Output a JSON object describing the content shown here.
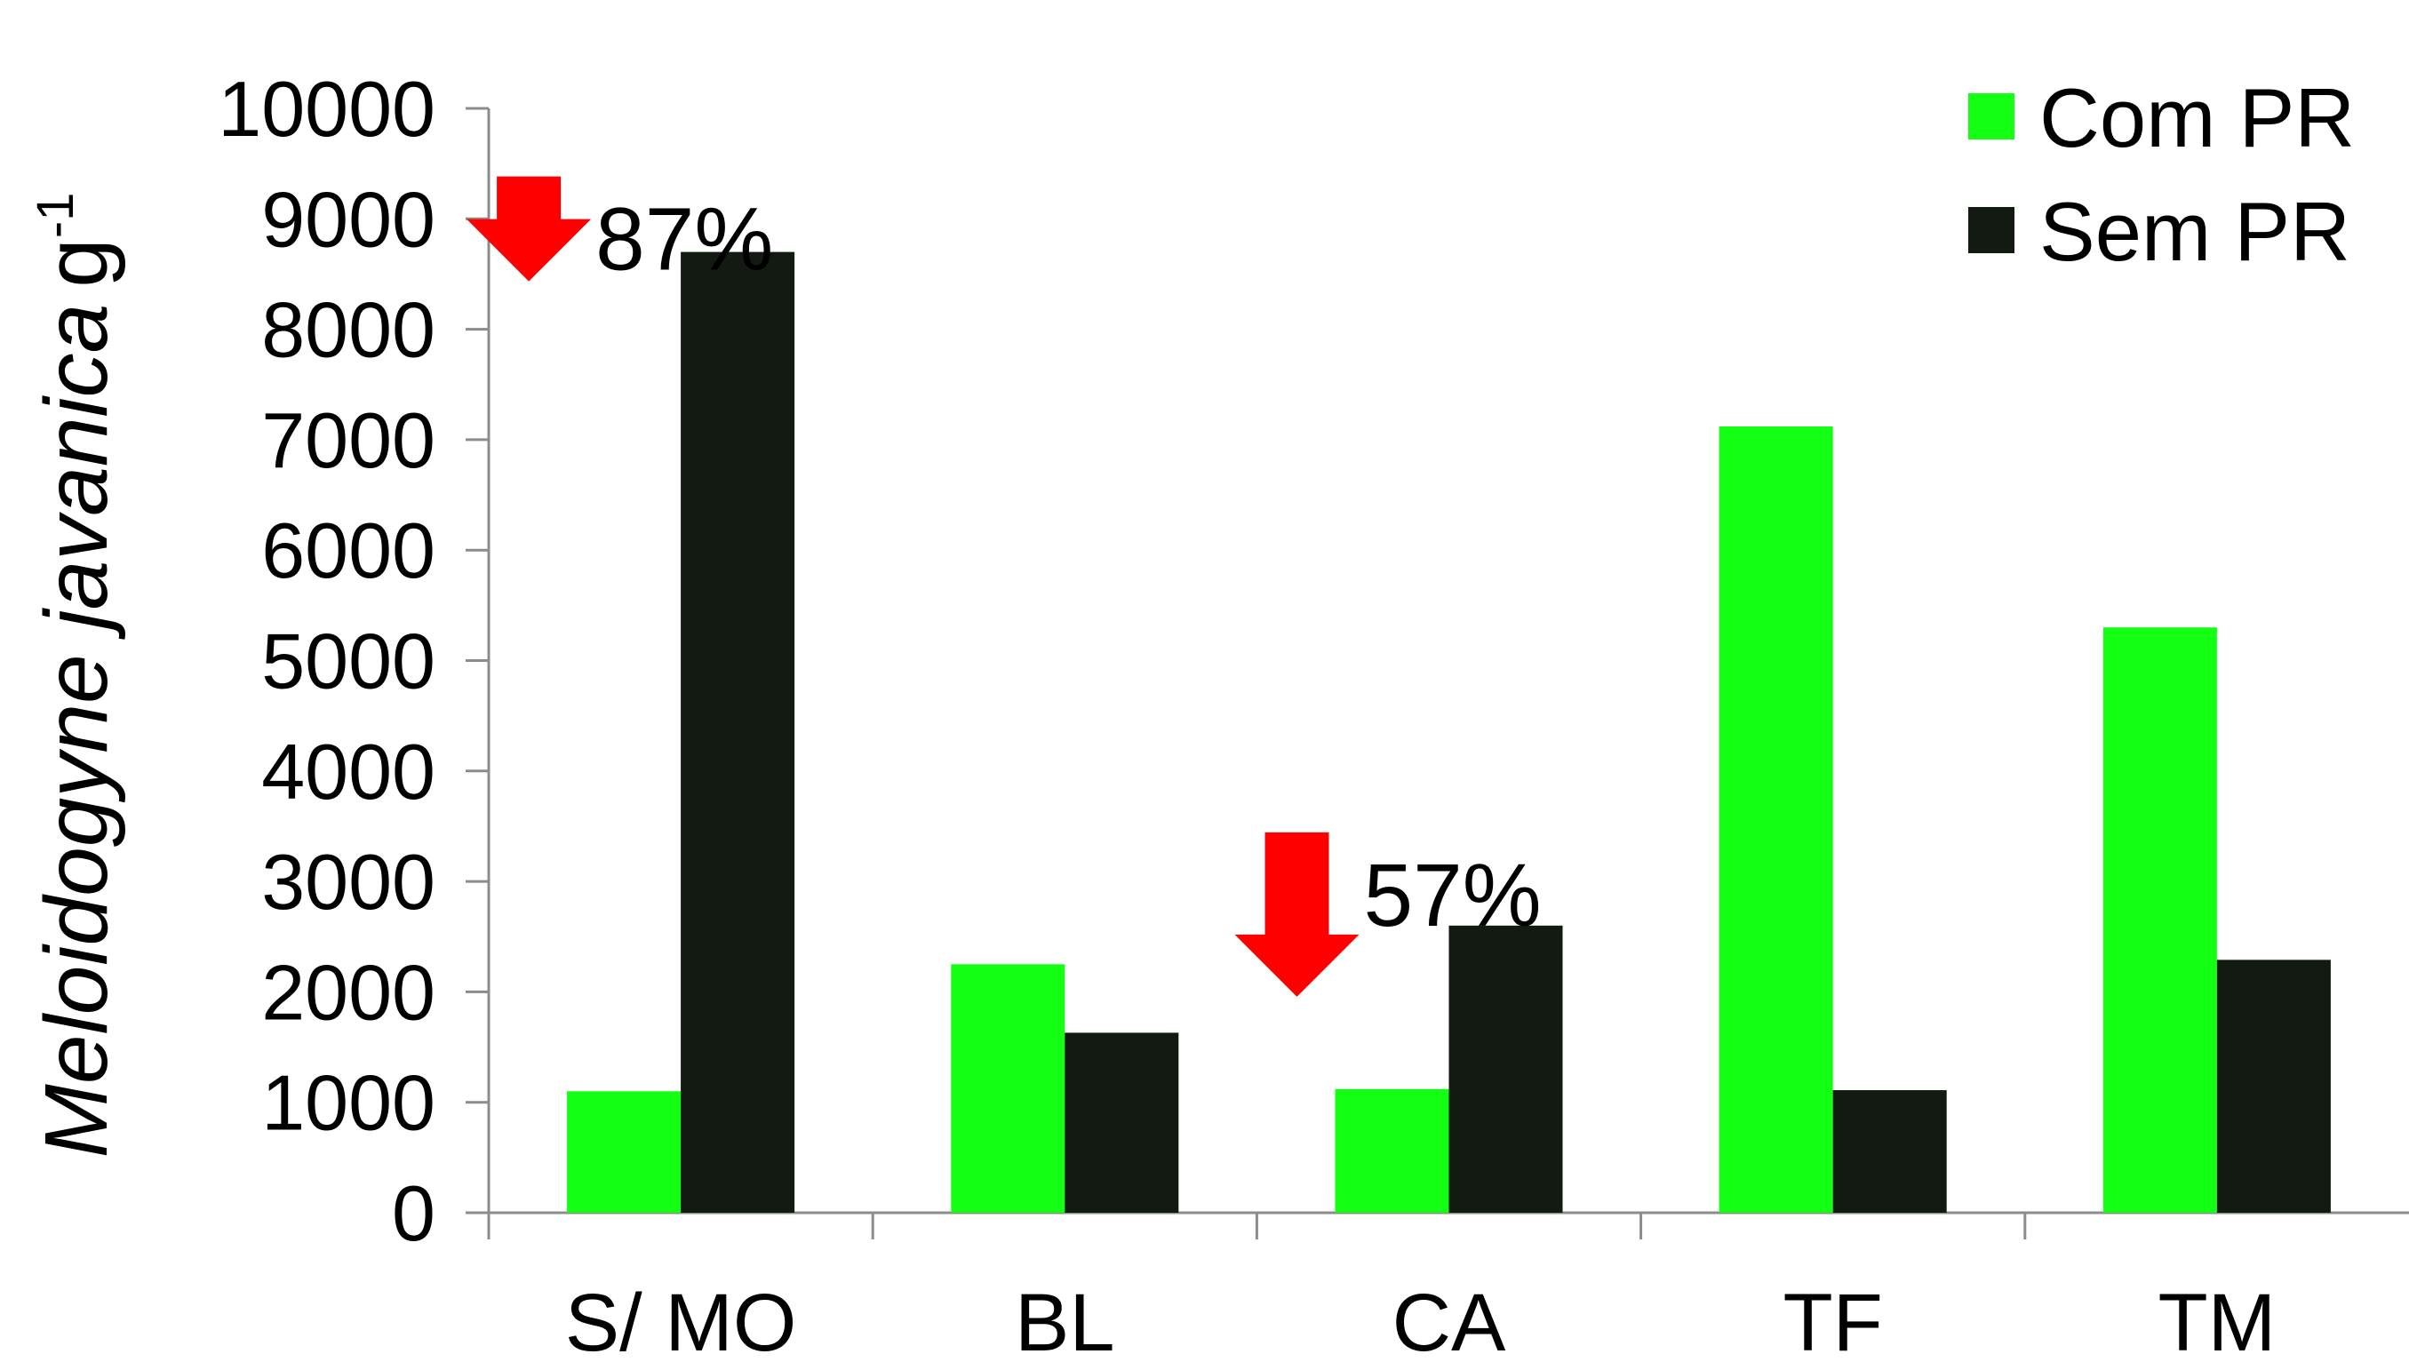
{
  "chart_data": {
    "type": "bar",
    "categories": [
      "S/ MO",
      "BL",
      "CA",
      "TF",
      "TM"
    ],
    "series": [
      {
        "name": "Com PR",
        "color": "#13ff13",
        "values": [
          1100,
          2250,
          1120,
          7120,
          5300
        ]
      },
      {
        "name": "Sem PR",
        "color": "#121a12",
        "values": [
          8700,
          1630,
          2600,
          1110,
          2290
        ]
      }
    ],
    "ylabel": {
      "main": "Meloidogyne javanica",
      "unit": "g",
      "superscript": "-1"
    },
    "ylim": [
      0,
      10000
    ],
    "yticks": [
      "0",
      "1000",
      "2000",
      "3000",
      "4000",
      "5000",
      "6000",
      "7000",
      "8000",
      "9000",
      "10000"
    ],
    "grid": false,
    "legend_position": "top-right",
    "annotations": [
      {
        "category": "S/ MO",
        "text": "87%",
        "arrow": "down",
        "arrow_color": "#ff0000"
      },
      {
        "category": "CA",
        "text": "57%",
        "arrow": "down",
        "arrow_color": "#ff0000"
      }
    ]
  }
}
